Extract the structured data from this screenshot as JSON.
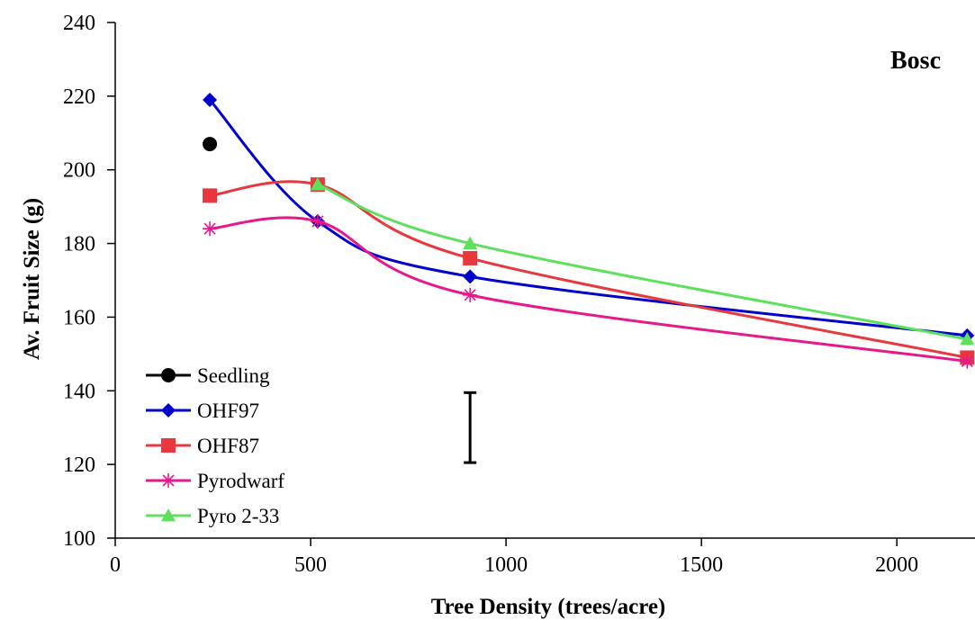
{
  "chart_data": {
    "type": "scatter",
    "panel_label": "Bosc",
    "xlabel": "Tree Density (trees/acre)",
    "ylabel": "Av. Fruit Size (g)",
    "xlim": [
      0,
      2200
    ],
    "ylim": [
      100,
      240
    ],
    "x_ticks": [
      0,
      500,
      1000,
      1500,
      2000
    ],
    "y_ticks": [
      100,
      120,
      140,
      160,
      180,
      200,
      220,
      240
    ],
    "x_tick_labels": [
      "0",
      "500",
      "1000",
      "1500",
      "2000"
    ],
    "y_tick_labels": [
      "100",
      "120",
      "140",
      "160",
      "180",
      "200",
      "220",
      "240"
    ],
    "grid": false,
    "legend_position": "bottom-left",
    "series": [
      {
        "name": "Seedling",
        "color": "#000000",
        "marker": "circle",
        "smooth": true,
        "points": [
          [
            242,
            207
          ]
        ]
      },
      {
        "name": "OHF97",
        "color": "#0000cc",
        "marker": "diamond",
        "smooth": true,
        "points": [
          [
            242,
            219
          ],
          [
            518,
            186
          ],
          [
            908,
            171
          ],
          [
            2180,
            155
          ]
        ]
      },
      {
        "name": "OHF87",
        "color": "#e8383d",
        "marker": "square",
        "smooth": true,
        "points": [
          [
            242,
            193
          ],
          [
            518,
            196
          ],
          [
            908,
            176
          ],
          [
            2180,
            149
          ]
        ]
      },
      {
        "name": "Pyrodwarf",
        "color": "#e6198c",
        "marker": "asterisk",
        "smooth": true,
        "points": [
          [
            242,
            184
          ],
          [
            518,
            186
          ],
          [
            908,
            166
          ],
          [
            2180,
            148
          ]
        ]
      },
      {
        "name": "Pyro 2-33",
        "color": "#5ee05e",
        "marker": "triangle",
        "smooth": true,
        "points": [
          [
            518,
            196
          ],
          [
            908,
            180
          ],
          [
            2180,
            154
          ]
        ]
      }
    ],
    "error_bar": {
      "x": 908,
      "y_low": 120.5,
      "y_high": 139.5,
      "color": "#000000"
    }
  }
}
